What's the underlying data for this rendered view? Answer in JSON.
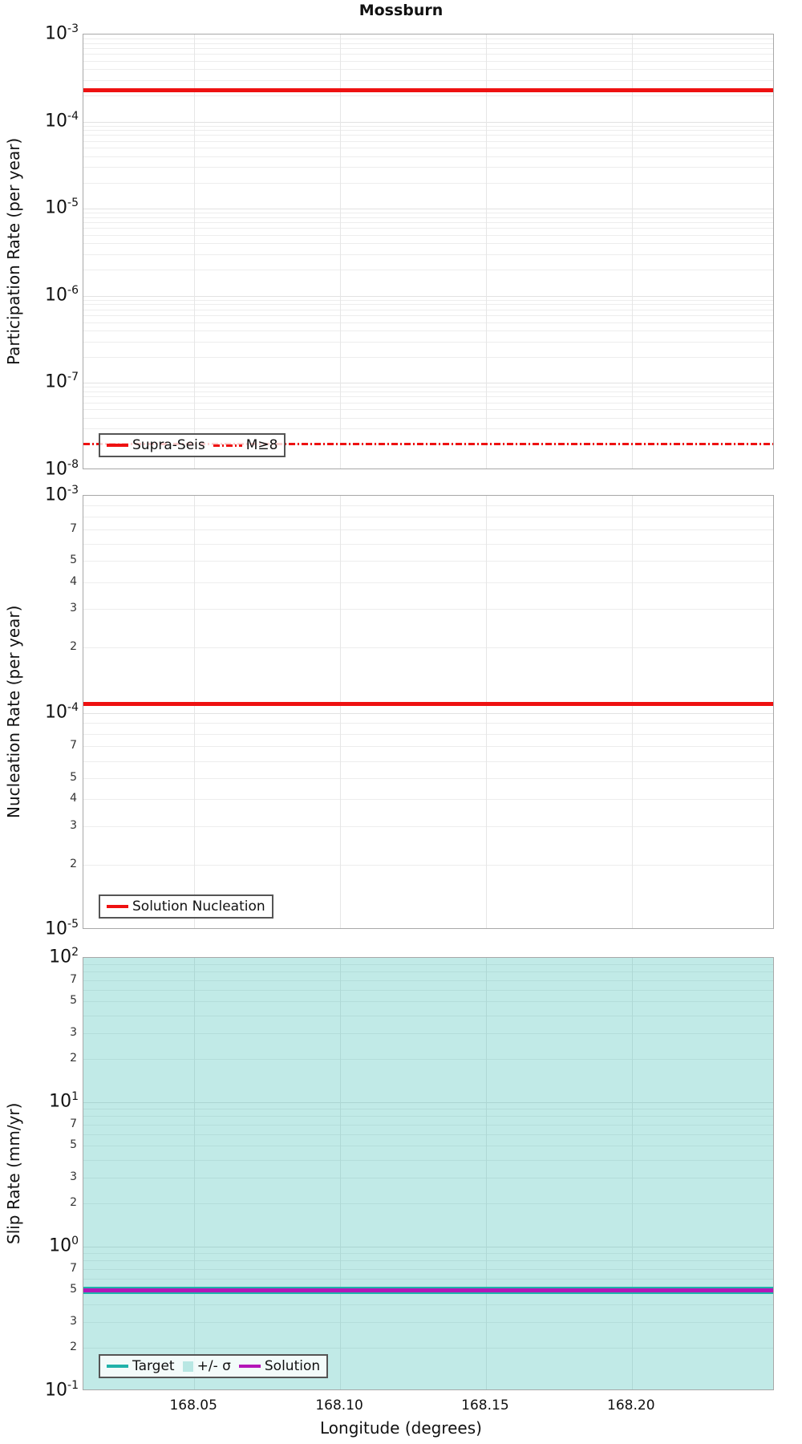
{
  "title": "Mossburn",
  "colors": {
    "red": "#ee1111",
    "teal": "#20b2aa",
    "magenta": "#b416b8",
    "band_fill": "rgba(32,178,170,0.28)",
    "grid_minor": "#ededed",
    "grid_major": "#e2e2e2",
    "spine": "#a8a8a8"
  },
  "xaxis": {
    "label": "Longitude (degrees)",
    "range": [
      168.012,
      168.249
    ],
    "tick_values": [
      168.05,
      168.1,
      168.15,
      168.2
    ],
    "tick_labels": [
      "168.05",
      "168.10",
      "168.15",
      "168.20"
    ]
  },
  "chart_data": [
    {
      "type": "line",
      "panel": "participation",
      "ylabel": "Participation Rate (per year)",
      "yscale": "log",
      "ylim_exp": [
        -3,
        -8
      ],
      "minor_label_digits": [],
      "grid": true,
      "legend_position": "lower-left",
      "series": [
        {
          "name": "Supra-Seis",
          "style": "solid",
          "color_key": "red",
          "value": 0.00023,
          "thickness": 5
        },
        {
          "name": "M≥8",
          "style": "dashdot",
          "color_key": "red",
          "value": 2e-08,
          "thickness": 3
        }
      ]
    },
    {
      "type": "line",
      "panel": "nucleation",
      "ylabel": "Nucleation Rate (per year)",
      "yscale": "log",
      "ylim_exp": [
        -3,
        -5
      ],
      "minor_label_digits": [
        7,
        5,
        4,
        3,
        2
      ],
      "grid": true,
      "legend_position": "lower-left",
      "series": [
        {
          "name": "Solution Nucleation",
          "style": "solid",
          "color_key": "red",
          "value": 0.00011,
          "thickness": 5
        }
      ]
    },
    {
      "type": "line",
      "panel": "slip-rate",
      "ylabel": "Slip Rate (mm/yr)",
      "yscale": "log",
      "ylim_exp": [
        2,
        -1
      ],
      "minor_label_digits": [
        7,
        5,
        3,
        2
      ],
      "grid": true,
      "legend_position": "lower-left",
      "band": {
        "name": "+/- σ",
        "color_key": "band_fill",
        "extent": "full-visible-range"
      },
      "series": [
        {
          "name": "Target",
          "style": "solid",
          "color_key": "teal",
          "value": 0.5,
          "thickness": 9
        },
        {
          "name": "Solution",
          "style": "solid",
          "color_key": "magenta",
          "value": 0.5,
          "thickness": 5
        }
      ]
    }
  ]
}
